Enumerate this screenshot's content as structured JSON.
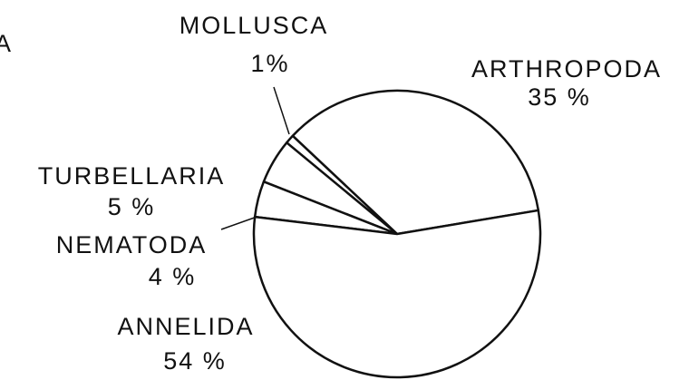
{
  "panel_label": "A",
  "chart_data": {
    "type": "pie",
    "categories": [
      "ARTHROPODA",
      "MOLLUSCA",
      "TURBELLARIA",
      "NEMATODA",
      "ANNELIDA"
    ],
    "values": [
      35,
      1,
      5,
      4,
      54
    ],
    "value_labels": [
      "35 %",
      "1%",
      "5 %",
      "4 %",
      "54 %"
    ],
    "color": "#ffffff"
  }
}
